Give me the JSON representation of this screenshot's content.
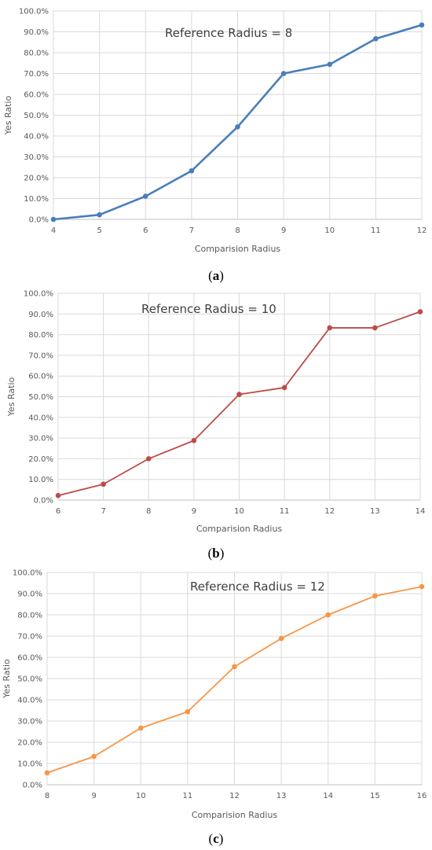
{
  "chart_data": [
    {
      "type": "line",
      "panel_label": "a",
      "annotation": "Reference Radius = 8",
      "xlabel": "Comparision Radius",
      "ylabel": "Yes  Ratio",
      "x": [
        4,
        5,
        6,
        7,
        8,
        9,
        10,
        11,
        12
      ],
      "values": [
        0.0,
        2.2,
        11.1,
        23.3,
        44.4,
        70.0,
        74.4,
        86.7,
        93.3
      ],
      "ylim": [
        0,
        100
      ],
      "yticks": [
        "0.0%",
        "10.0%",
        "20.0%",
        "30.0%",
        "40.0%",
        "50.0%",
        "60.0%",
        "70.0%",
        "80.0%",
        "90.0%",
        "100.0%"
      ],
      "grid": true,
      "color": "#4a7ebb"
    },
    {
      "type": "line",
      "panel_label": "b",
      "annotation": "Reference Radius = 10",
      "xlabel": "Comparision Radius",
      "ylabel": "Yes Ratio",
      "x": [
        6,
        7,
        8,
        9,
        10,
        11,
        12,
        13,
        14
      ],
      "values": [
        2.2,
        7.7,
        20.0,
        28.8,
        51.1,
        54.4,
        83.3,
        83.3,
        91.1
      ],
      "ylim": [
        0,
        100
      ],
      "yticks": [
        "0.0%",
        "10.0%",
        "20.0%",
        "30.0%",
        "40.0%",
        "50.0%",
        "60.0%",
        "70.0%",
        "80.0%",
        "90.0%",
        "100.0%"
      ],
      "grid": true,
      "color": "#be4b48"
    },
    {
      "type": "line",
      "panel_label": "c",
      "annotation": "Reference Radius = 12",
      "xlabel": "Comparision Radius",
      "ylabel": "Yes Ratio",
      "x": [
        8,
        9,
        10,
        11,
        12,
        13,
        14,
        15,
        16
      ],
      "values": [
        5.6,
        13.3,
        26.7,
        34.4,
        55.6,
        68.9,
        80.0,
        88.9,
        93.3
      ],
      "ylim": [
        0,
        100
      ],
      "yticks": [
        "0.0%",
        "10.0%",
        "20.0%",
        "30.0%",
        "40.0%",
        "50.0%",
        "60.0%",
        "70.0%",
        "80.0%",
        "90.0%",
        "100.0%"
      ],
      "grid": true,
      "color": "#f79646"
    }
  ]
}
